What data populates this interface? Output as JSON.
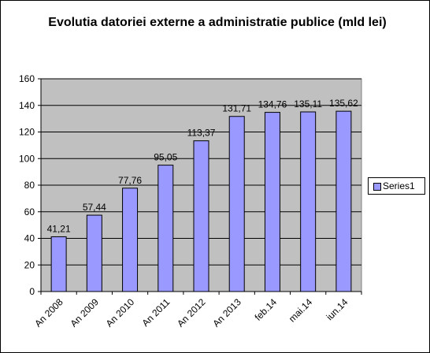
{
  "chart_data": {
    "type": "bar",
    "title": "Evolutia datoriei externe a administratie publice (mld lei)",
    "categories": [
      "An 2008",
      "An 2009",
      "An 2010",
      "An 2011",
      "An 2012",
      "An 2013",
      "feb.14",
      "mai.14",
      "iun.14"
    ],
    "series": [
      {
        "name": "Series1",
        "values": [
          41.21,
          57.44,
          77.76,
          95.05,
          113.37,
          131.71,
          134.76,
          135.11,
          135.62
        ],
        "data_labels": [
          "41,21",
          "57,44",
          "77,76",
          "95,05",
          "113,37",
          "131,71",
          "134,76",
          "135,11",
          "135,62"
        ]
      }
    ],
    "y_ticks": [
      "0",
      "20",
      "40",
      "60",
      "80",
      "100",
      "120",
      "140",
      "160"
    ],
    "ylim": [
      0,
      160
    ],
    "grid": true,
    "legend": "right",
    "colors": {
      "bar_fill": "#9999ff",
      "bar_stroke": "#000000",
      "plot_background": "#c0c0c0",
      "gridline": "#000000"
    }
  }
}
